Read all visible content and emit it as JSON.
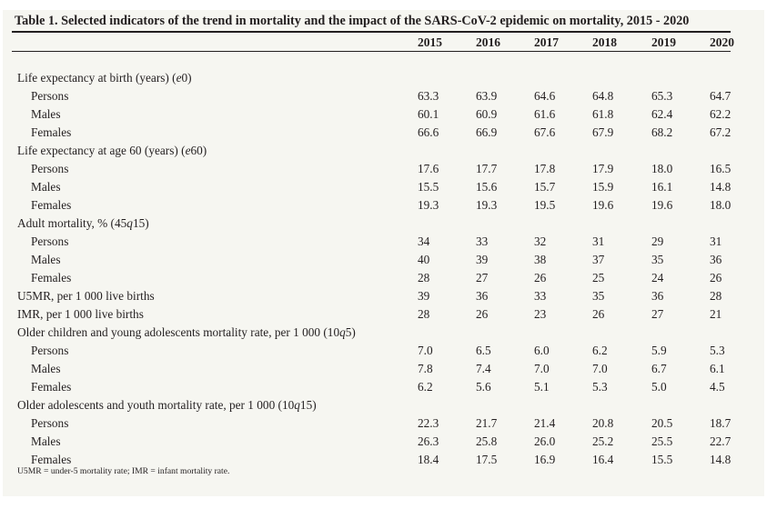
{
  "table": {
    "title": "Table 1. Selected indicators of the trend in mortality and the impact of the SARS-CoV-2 epidemic on mortality, 2015 - 2020",
    "years": [
      "2015",
      "2016",
      "2017",
      "2018",
      "2019",
      "2020"
    ],
    "rows": [
      {
        "label": "Life expectancy at birth (years) (",
        "label_italic": "e",
        "label_tail": "0)",
        "type": "section",
        "values": []
      },
      {
        "label": "Persons",
        "type": "sub",
        "values": [
          "63.3",
          "63.9",
          "64.6",
          "64.8",
          "65.3",
          "64.7"
        ]
      },
      {
        "label": "Males",
        "type": "sub",
        "values": [
          "60.1",
          "60.9",
          "61.6",
          "61.8",
          "62.4",
          "62.2"
        ]
      },
      {
        "label": "Females",
        "type": "sub",
        "values": [
          "66.6",
          "66.9",
          "67.6",
          "67.9",
          "68.2",
          "67.2"
        ]
      },
      {
        "label": "Life expectancy at age 60 (years) (",
        "label_italic": "e",
        "label_tail": "60)",
        "type": "section",
        "values": []
      },
      {
        "label": "Persons",
        "type": "sub",
        "values": [
          "17.6",
          "17.7",
          "17.8",
          "17.9",
          "18.0",
          "16.5"
        ]
      },
      {
        "label": "Males",
        "type": "sub",
        "values": [
          "15.5",
          "15.6",
          "15.7",
          "15.9",
          "16.1",
          "14.8"
        ]
      },
      {
        "label": "Females",
        "type": "sub",
        "values": [
          "19.3",
          "19.3",
          "19.5",
          "19.6",
          "19.6",
          "18.0"
        ]
      },
      {
        "label": "Adult mortality, % (45",
        "label_italic": "q",
        "label_tail": "15)",
        "type": "section",
        "values": []
      },
      {
        "label": "Persons",
        "type": "sub",
        "values": [
          "34",
          "33",
          "32",
          "31",
          "29",
          "31"
        ]
      },
      {
        "label": "Males",
        "type": "sub",
        "values": [
          "40",
          "39",
          "38",
          "37",
          "35",
          "36"
        ]
      },
      {
        "label": "Females",
        "type": "sub",
        "values": [
          "28",
          "27",
          "26",
          "25",
          "24",
          "26"
        ]
      },
      {
        "label": "U5MR, per 1 000 live births",
        "label_italic": "",
        "label_tail": "",
        "type": "section",
        "values": [
          "39",
          "36",
          "33",
          "35",
          "36",
          "28"
        ]
      },
      {
        "label": "IMR, per 1 000 live births",
        "label_italic": "",
        "label_tail": "",
        "type": "section",
        "values": [
          "28",
          "26",
          "23",
          "26",
          "27",
          "21"
        ]
      },
      {
        "label": "Older children and young adolescents mortality rate, per 1 000 (10",
        "label_italic": "q",
        "label_tail": "5)",
        "type": "section",
        "values": []
      },
      {
        "label": "Persons",
        "type": "sub",
        "values": [
          "7.0",
          "6.5",
          "6.0",
          "6.2",
          "5.9",
          "5.3"
        ]
      },
      {
        "label": "Males",
        "type": "sub",
        "values": [
          "7.8",
          "7.4",
          "7.0",
          "7.0",
          "6.7",
          "6.1"
        ]
      },
      {
        "label": "Females",
        "type": "sub",
        "values": [
          "6.2",
          "5.6",
          "5.1",
          "5.3",
          "5.0",
          "4.5"
        ]
      },
      {
        "label": "Older adolescents and youth mortality rate, per 1 000 (10",
        "label_italic": "q",
        "label_tail": "15)",
        "type": "section",
        "values": []
      },
      {
        "label": "Persons",
        "type": "sub",
        "values": [
          "22.3",
          "21.7",
          "21.4",
          "20.8",
          "20.5",
          "18.7"
        ]
      },
      {
        "label": "Males",
        "type": "sub",
        "values": [
          "26.3",
          "25.8",
          "26.0",
          "25.2",
          "25.5",
          "22.7"
        ]
      },
      {
        "label": "Females",
        "type": "sub",
        "values": [
          "18.4",
          "17.5",
          "16.9",
          "16.4",
          "15.5",
          "14.8"
        ]
      }
    ],
    "footnote": "U5MR = under-5 mortality rate; IMR = infant mortality rate."
  }
}
